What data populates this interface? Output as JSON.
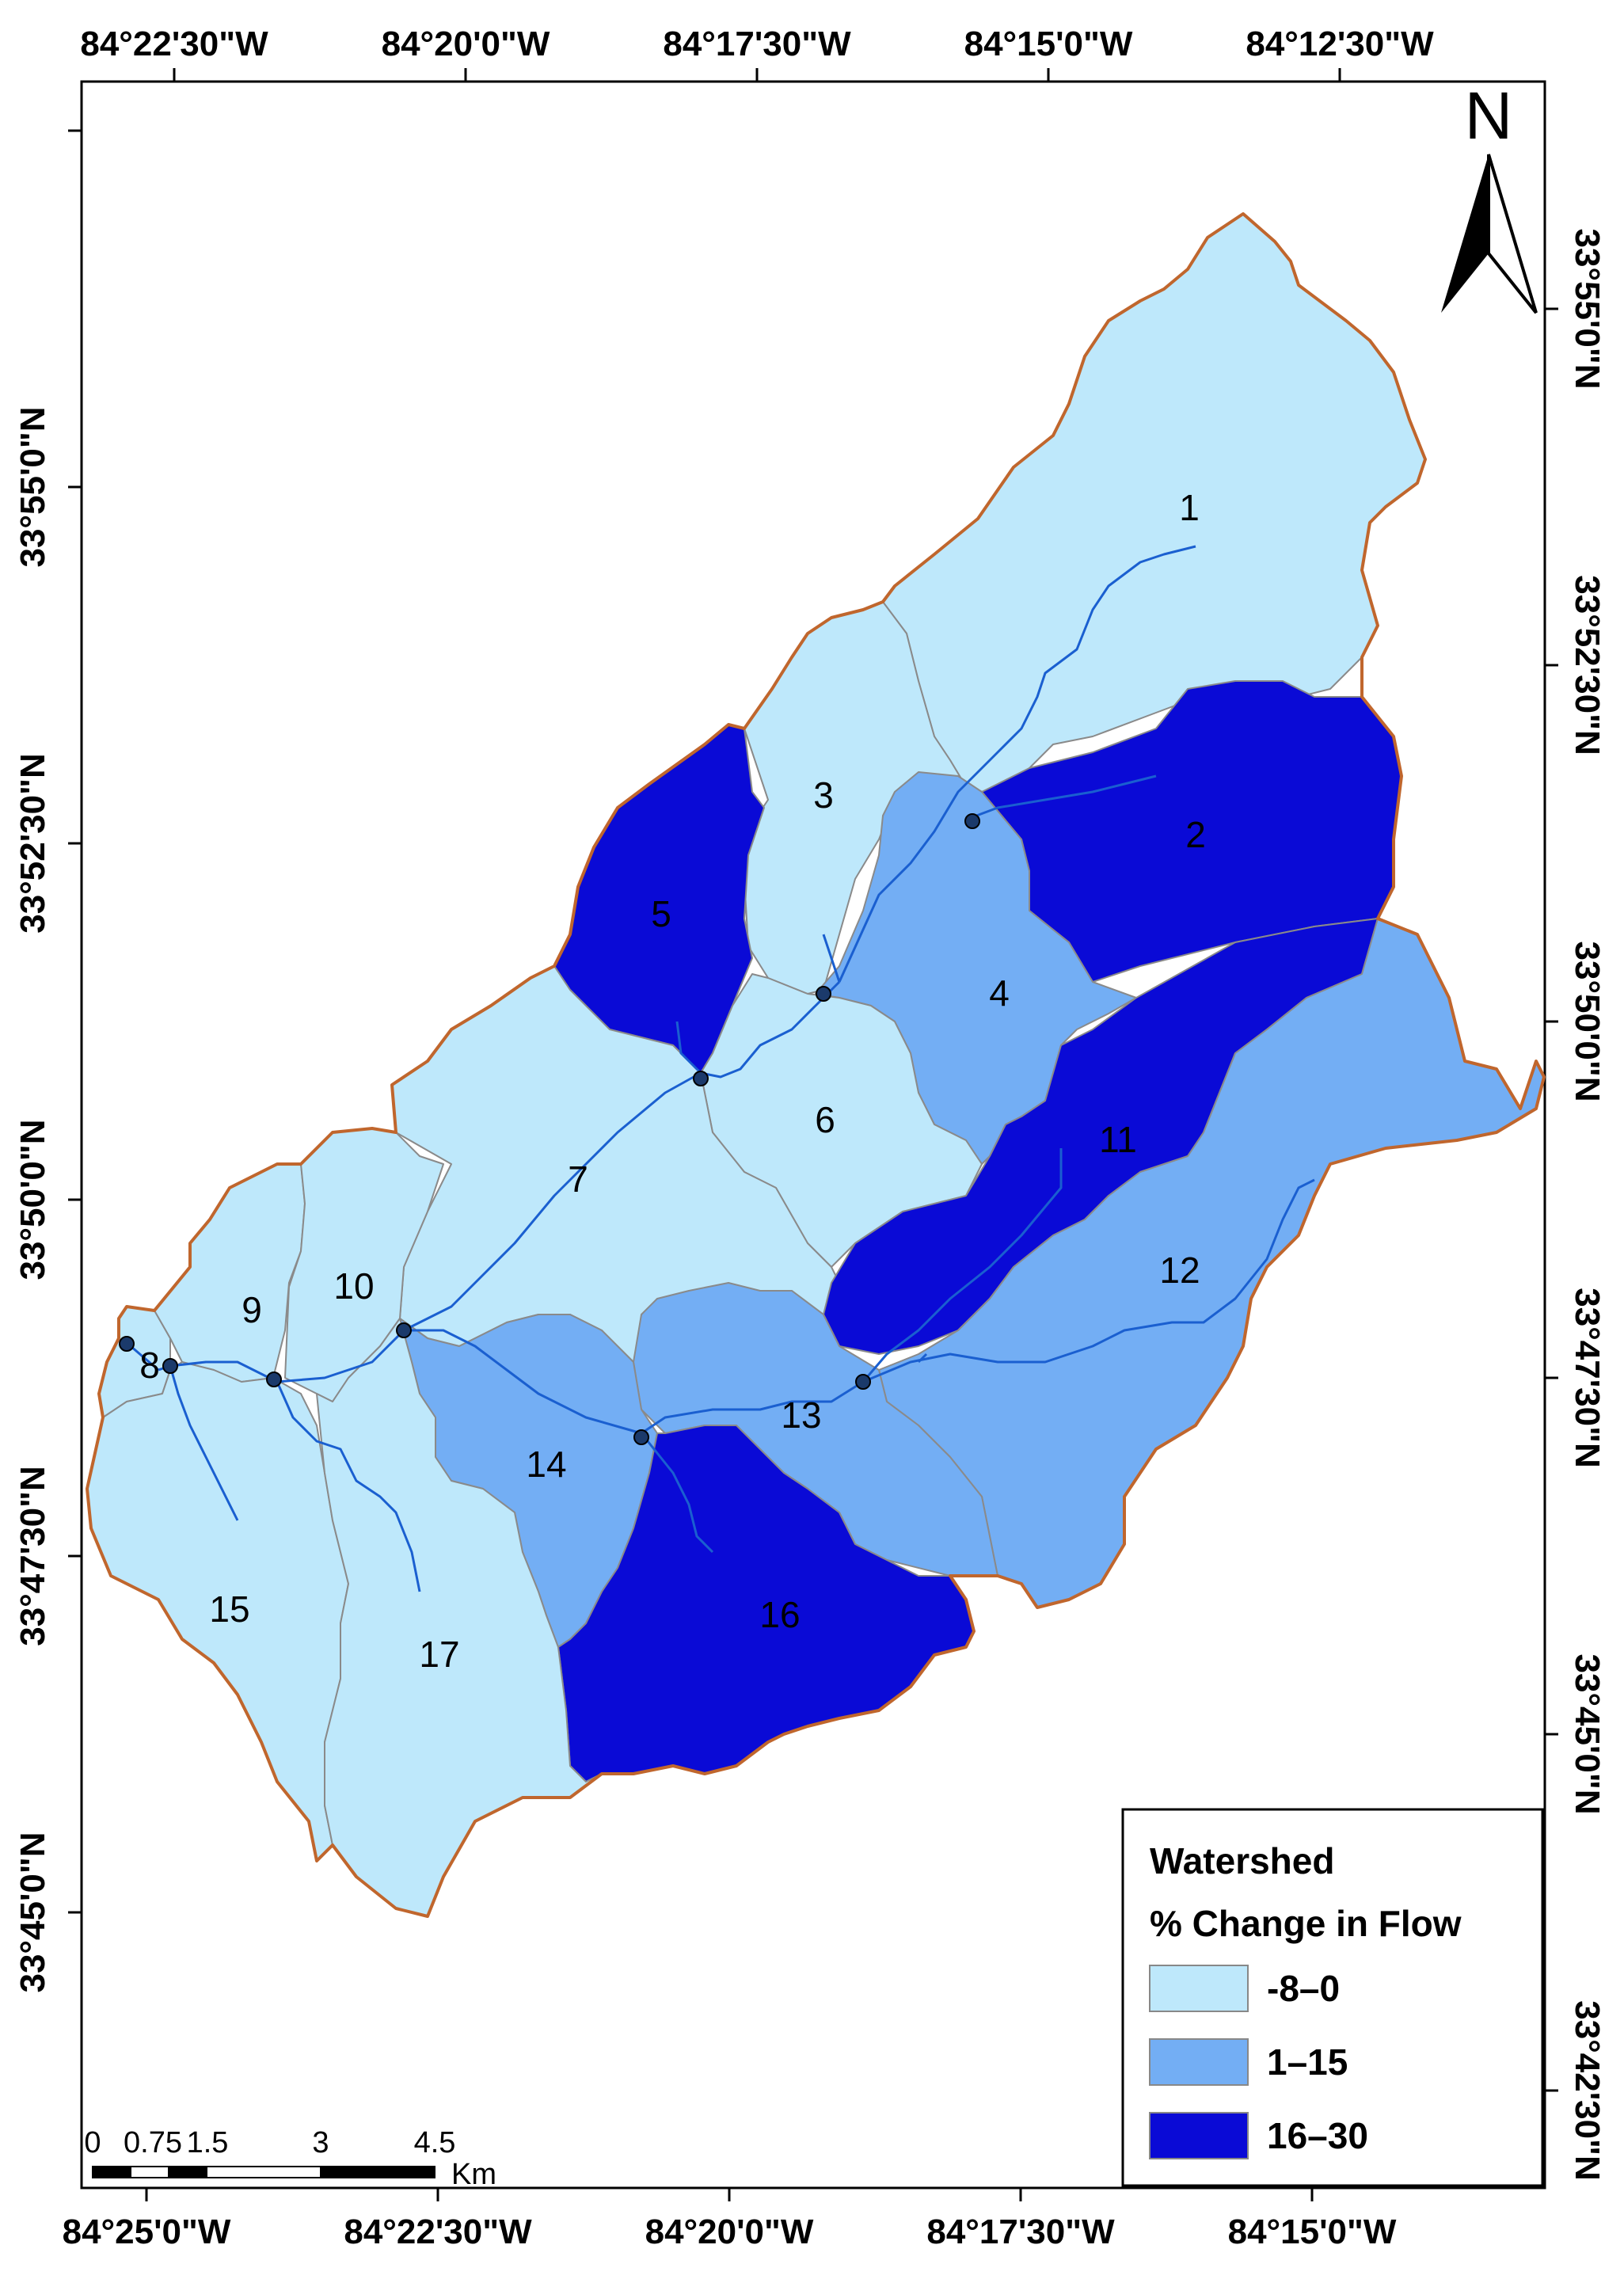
{
  "map": {
    "top_coords": [
      "84°22'30\"W",
      "84°20'0\"W",
      "84°17'30\"W",
      "84°15'0\"W",
      "84°12'30\"W"
    ],
    "bottom_coords": [
      "84°25'0\"W",
      "84°22'30\"W",
      "84°20'0\"W",
      "84°17'30\"W",
      "84°15'0\"W"
    ],
    "left_coords": [
      "33°55'0\"N",
      "33°52'30\"N",
      "33°50'0\"N",
      "33°47'30\"N",
      "33°45'0\"N"
    ],
    "right_coords": [
      "33°55'0\"N",
      "33°52'30\"N",
      "33°50'0\"N",
      "33°47'30\"N",
      "33°45'0\"N",
      "33°42'30\"N"
    ],
    "north_label": "N",
    "subbasins": [
      {
        "id": "1",
        "class": 0
      },
      {
        "id": "2",
        "class": 2
      },
      {
        "id": "3",
        "class": 0
      },
      {
        "id": "4",
        "class": 1
      },
      {
        "id": "5",
        "class": 2
      },
      {
        "id": "6",
        "class": 0
      },
      {
        "id": "7",
        "class": 0
      },
      {
        "id": "8",
        "class": 0
      },
      {
        "id": "9",
        "class": 0
      },
      {
        "id": "10",
        "class": 0
      },
      {
        "id": "11",
        "class": 2
      },
      {
        "id": "12",
        "class": 1
      },
      {
        "id": "13",
        "class": 1
      },
      {
        "id": "14",
        "class": 1
      },
      {
        "id": "15",
        "class": 0
      },
      {
        "id": "16",
        "class": 2
      },
      {
        "id": "17",
        "class": 0
      }
    ],
    "colors": {
      "class0": "#bee8fb",
      "class1": "#73aef4",
      "class2": "#0a0ad6",
      "boundary": "#c0662d",
      "stream": "#1a5fd0"
    }
  },
  "legend": {
    "title1": "Watershed",
    "title2": "% Change in Flow",
    "items": [
      {
        "label": "-8–0",
        "color": "#bee8fb"
      },
      {
        "label": "1–15",
        "color": "#73aef4"
      },
      {
        "label": "16–30",
        "color": "#0a0ad6"
      }
    ]
  },
  "scalebar": {
    "ticks": [
      "0",
      "0.75",
      "1.5",
      "3",
      "4.5"
    ],
    "unit": "Km"
  }
}
